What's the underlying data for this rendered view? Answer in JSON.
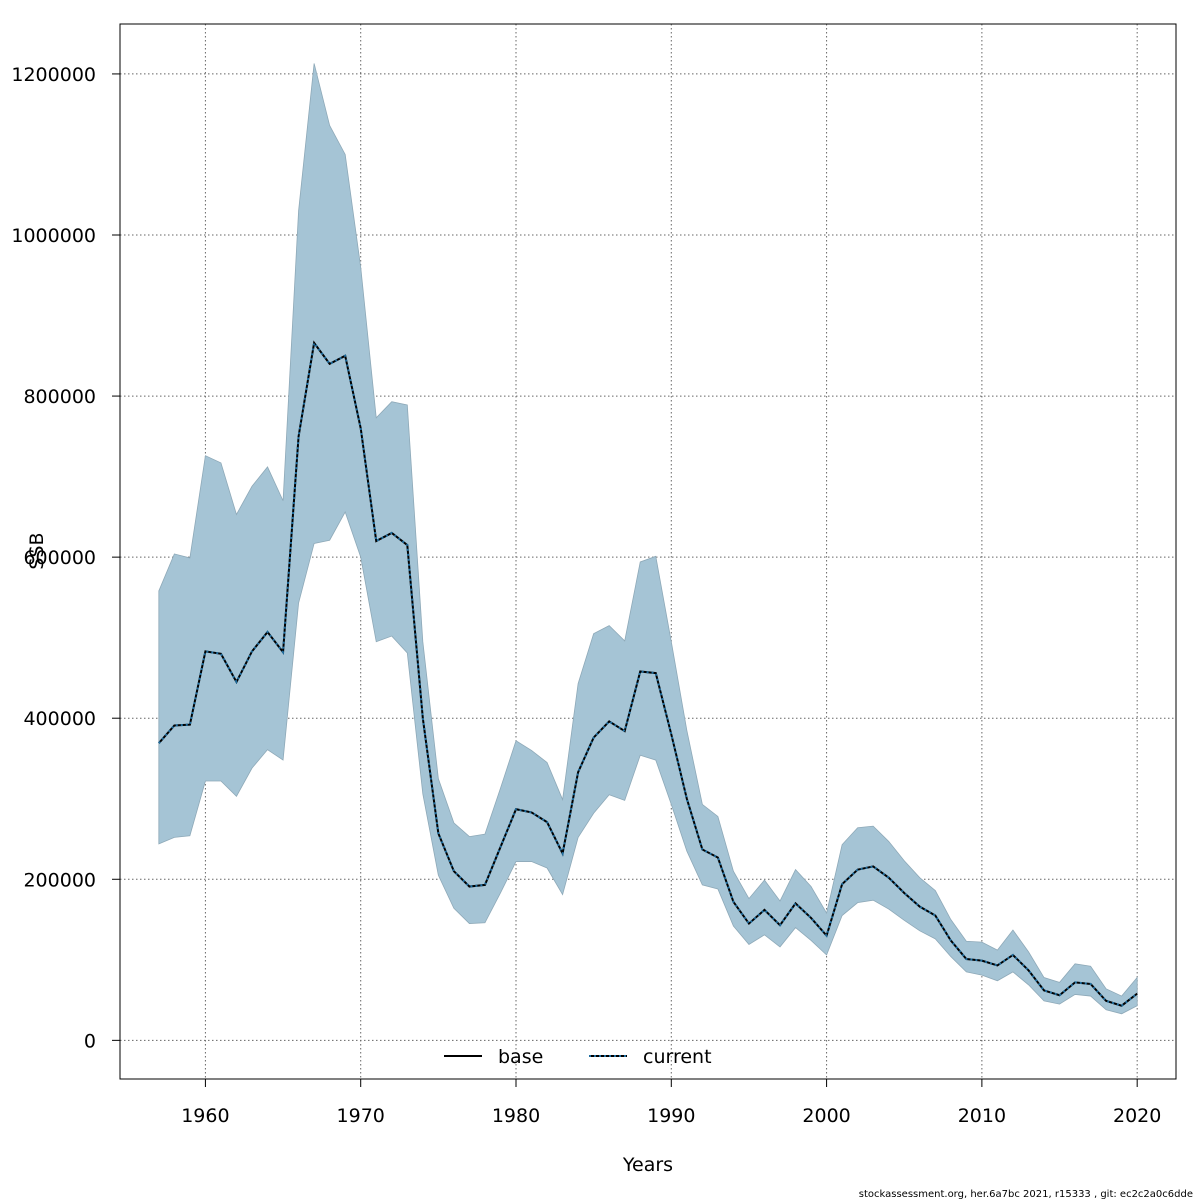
{
  "chart_data": {
    "type": "line",
    "xlabel": "Years",
    "ylabel": "SSB",
    "xlim": [
      1954.5,
      2022.5
    ],
    "ylim": [
      -48000,
      1262000
    ],
    "x_ticks": [
      1960,
      1970,
      1980,
      1990,
      2000,
      2010,
      2020
    ],
    "y_ticks": [
      0,
      200000,
      400000,
      600000,
      800000,
      1000000,
      1200000
    ],
    "grid": true,
    "legend_position": "bottom",
    "legend": [
      {
        "label": "base",
        "style": "solid",
        "color": "#000000"
      },
      {
        "label": "current",
        "style": "dotted",
        "color": "#004a7c"
      }
    ],
    "colors": {
      "band": "#a5c4d5",
      "band_edge": "#8ea9b8",
      "line": "#000000",
      "dot": "#1f6ea0"
    },
    "footer": "stockassessment.org, her.6a7bc  2021, r15333 , git: ec2c2a0c6dde",
    "years": [
      1957,
      1958,
      1959,
      1960,
      1961,
      1962,
      1963,
      1964,
      1965,
      1966,
      1967,
      1968,
      1969,
      1970,
      1971,
      1972,
      1973,
      1974,
      1975,
      1976,
      1977,
      1978,
      1979,
      1980,
      1981,
      1982,
      1983,
      1984,
      1985,
      1986,
      1987,
      1988,
      1989,
      1990,
      1991,
      1992,
      1993,
      1994,
      1995,
      1996,
      1997,
      1998,
      1999,
      2000,
      2001,
      2002,
      2003,
      2004,
      2005,
      2006,
      2007,
      2008,
      2009,
      2010,
      2011,
      2012,
      2013,
      2014,
      2015,
      2016,
      2017,
      2018,
      2019,
      2020
    ],
    "series": [
      {
        "name": "base",
        "values": [
          369000,
          391000,
          392000,
          483000,
          480000,
          445000,
          483000,
          507000,
          482000,
          750000,
          866000,
          840000,
          850000,
          760000,
          620000,
          630000,
          615000,
          400000,
          257000,
          210000,
          191000,
          193000,
          240000,
          287000,
          283000,
          271000,
          232000,
          333000,
          376000,
          396000,
          384000,
          458000,
          456000,
          380000,
          300000,
          237000,
          227000,
          172000,
          145000,
          162000,
          143000,
          170000,
          152000,
          130000,
          194000,
          212000,
          216000,
          202000,
          183000,
          166000,
          155000,
          124000,
          101000,
          99000,
          93000,
          106000,
          87000,
          62000,
          56000,
          72000,
          70000,
          49000,
          43000,
          58000
        ]
      },
      {
        "name": "current",
        "values": [
          369000,
          391000,
          392000,
          483000,
          480000,
          445000,
          483000,
          507000,
          482000,
          750000,
          866000,
          840000,
          850000,
          760000,
          620000,
          630000,
          615000,
          400000,
          257000,
          210000,
          191000,
          193000,
          240000,
          287000,
          283000,
          271000,
          232000,
          333000,
          376000,
          396000,
          384000,
          458000,
          456000,
          380000,
          300000,
          237000,
          227000,
          172000,
          145000,
          162000,
          143000,
          170000,
          152000,
          130000,
          194000,
          212000,
          216000,
          202000,
          183000,
          166000,
          155000,
          124000,
          101000,
          99000,
          93000,
          106000,
          87000,
          62000,
          56000,
          72000,
          70000,
          49000,
          43000,
          58000
        ]
      }
    ],
    "band_upper": [
      558000,
      604000,
      599000,
      726000,
      717000,
      653000,
      688000,
      712000,
      670000,
      1030000,
      1213000,
      1136000,
      1100000,
      960000,
      773000,
      793000,
      789000,
      495000,
      325000,
      270000,
      253000,
      256000,
      313000,
      372000,
      360000,
      345000,
      299000,
      443000,
      505000,
      515000,
      496000,
      594000,
      601000,
      495000,
      385000,
      293000,
      278000,
      210000,
      176000,
      199000,
      173000,
      212000,
      191000,
      158000,
      243000,
      264000,
      266000,
      247000,
      223000,
      202000,
      186000,
      150000,
      123000,
      122000,
      112000,
      137000,
      110000,
      78000,
      72000,
      95000,
      92000,
      64000,
      55000,
      78000
    ],
    "band_lower": [
      244000,
      252000,
      254000,
      322000,
      322000,
      303000,
      338000,
      361000,
      348000,
      543000,
      617000,
      621000,
      656000,
      600000,
      495000,
      502000,
      481000,
      306000,
      205000,
      164000,
      145000,
      146000,
      183000,
      222000,
      222000,
      214000,
      181000,
      252000,
      282000,
      305000,
      298000,
      354000,
      348000,
      293000,
      235000,
      193000,
      188000,
      142000,
      119000,
      131000,
      116000,
      140000,
      124000,
      106000,
      155000,
      171000,
      174000,
      163000,
      149000,
      136000,
      126000,
      104000,
      85000,
      81000,
      74000,
      85000,
      69000,
      49000,
      45000,
      57000,
      55000,
      38000,
      33000,
      43000
    ]
  }
}
